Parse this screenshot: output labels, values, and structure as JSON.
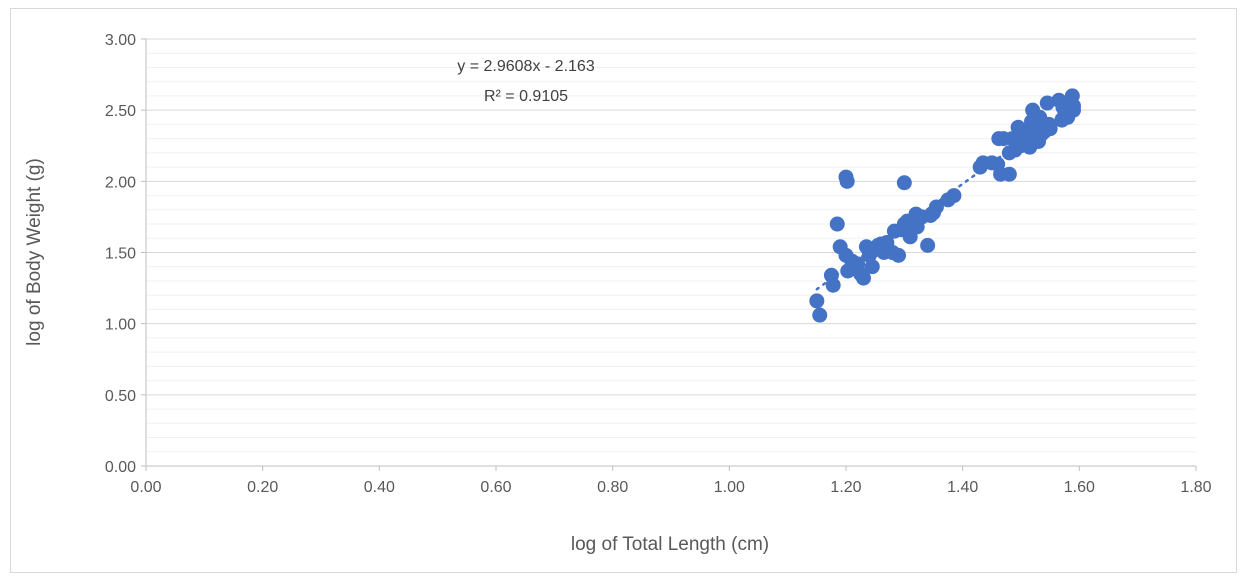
{
  "chart_data": {
    "type": "scatter",
    "xlabel": "log of Total Length (cm)",
    "ylabel": "log of Body Weight (g)",
    "xlim": [
      0,
      1.8
    ],
    "ylim": [
      0,
      3.0
    ],
    "x_ticks": [
      "0.00",
      "0.20",
      "0.40",
      "0.60",
      "0.80",
      "1.00",
      "1.20",
      "1.40",
      "1.60",
      "1.80"
    ],
    "y_ticks": [
      "0.00",
      "0.50",
      "1.00",
      "1.50",
      "2.00",
      "2.50",
      "3.00"
    ],
    "grid": true,
    "legend": "none",
    "marker_color": "#4472c4",
    "trendline": {
      "type": "linear",
      "slope": 2.9608,
      "intercept": -2.163,
      "x_range": [
        1.15,
        1.59
      ],
      "style": "dotted",
      "equation_label": "y = 2.9608x - 2.163",
      "r2_label": "R² = 0.9105"
    },
    "series": [
      {
        "points": [
          [
            1.15,
            1.16
          ],
          [
            1.155,
            1.06
          ],
          [
            1.175,
            1.34
          ],
          [
            1.178,
            1.27
          ],
          [
            1.185,
            1.7
          ],
          [
            1.19,
            1.54
          ],
          [
            1.2,
            2.03
          ],
          [
            1.202,
            2.0
          ],
          [
            1.2,
            1.48
          ],
          [
            1.203,
            1.37
          ],
          [
            1.21,
            1.44
          ],
          [
            1.22,
            1.42
          ],
          [
            1.225,
            1.35
          ],
          [
            1.23,
            1.32
          ],
          [
            1.235,
            1.54
          ],
          [
            1.24,
            1.48
          ],
          [
            1.245,
            1.4
          ],
          [
            1.25,
            1.52
          ],
          [
            1.255,
            1.55
          ],
          [
            1.26,
            1.56
          ],
          [
            1.265,
            1.5
          ],
          [
            1.27,
            1.57
          ],
          [
            1.28,
            1.5
          ],
          [
            1.283,
            1.65
          ],
          [
            1.29,
            1.48
          ],
          [
            1.295,
            1.66
          ],
          [
            1.3,
            1.99
          ],
          [
            1.3,
            1.7
          ],
          [
            1.305,
            1.72
          ],
          [
            1.31,
            1.61
          ],
          [
            1.315,
            1.7
          ],
          [
            1.32,
            1.77
          ],
          [
            1.322,
            1.68
          ],
          [
            1.33,
            1.75
          ],
          [
            1.34,
            1.55
          ],
          [
            1.345,
            1.76
          ],
          [
            1.35,
            1.78
          ],
          [
            1.355,
            1.82
          ],
          [
            1.375,
            1.87
          ],
          [
            1.385,
            1.9
          ],
          [
            1.43,
            2.1
          ],
          [
            1.435,
            2.13
          ],
          [
            1.45,
            2.13
          ],
          [
            1.46,
            2.12
          ],
          [
            1.462,
            2.3
          ],
          [
            1.465,
            2.05
          ],
          [
            1.47,
            2.3
          ],
          [
            1.48,
            2.05
          ],
          [
            1.48,
            2.2
          ],
          [
            1.485,
            2.3
          ],
          [
            1.49,
            2.22
          ],
          [
            1.492,
            2.27
          ],
          [
            1.495,
            2.38
          ],
          [
            1.5,
            2.25
          ],
          [
            1.5,
            2.34
          ],
          [
            1.505,
            2.3
          ],
          [
            1.51,
            2.28
          ],
          [
            1.512,
            2.35
          ],
          [
            1.515,
            2.24
          ],
          [
            1.518,
            2.42
          ],
          [
            1.52,
            2.5
          ],
          [
            1.522,
            2.31
          ],
          [
            1.525,
            2.37
          ],
          [
            1.53,
            2.28
          ],
          [
            1.532,
            2.45
          ],
          [
            1.535,
            2.33
          ],
          [
            1.54,
            2.35
          ],
          [
            1.545,
            2.55
          ],
          [
            1.548,
            2.4
          ],
          [
            1.55,
            2.37
          ],
          [
            1.565,
            2.57
          ],
          [
            1.57,
            2.43
          ],
          [
            1.575,
            2.47
          ],
          [
            1.58,
            2.45
          ],
          [
            1.585,
            2.56
          ],
          [
            1.588,
            2.6
          ],
          [
            1.59,
            2.5
          ],
          [
            1.59,
            2.53
          ],
          [
            1.58,
            2.47
          ],
          [
            1.572,
            2.52
          ]
        ]
      }
    ]
  }
}
